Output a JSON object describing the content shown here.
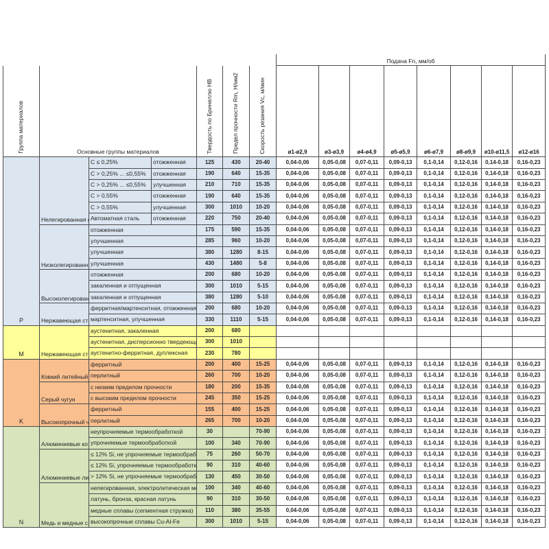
{
  "header": {
    "col_group": "Группа материалов",
    "col_main": "Основные группы материалов",
    "col_hb": "Твердость по Бринеллю HB",
    "col_rm": "Предел прочности Rm, Н/мм2",
    "col_vc": "Скорость резания Vc, м/мин",
    "feed_title": "Подача Fn, мм/об",
    "feed_cols": [
      "ø1-ø2,9",
      "ø3-ø3,9",
      "ø4-ø4,9",
      "ø5-ø5,9",
      "ø6-ø7,9",
      "ø8-ø9,9",
      "ø10-ø11,5",
      "ø12-ø16"
    ]
  },
  "feed_values": [
    "0,04-0,06",
    "0,05-0,08",
    "0,07-0,11",
    "0,09-0,13",
    "0,1-0,14",
    "0,12-0,16",
    "0,14-0,18",
    "0,16-0,23"
  ],
  "blocks": [
    {
      "letter": "P",
      "color": "#dce6f1",
      "rows": 15
    },
    {
      "letter": "M",
      "color": "#ffff99",
      "rows": 3
    },
    {
      "letter": "K",
      "color": "#fabf8f",
      "rows": 6
    },
    {
      "letter": "N",
      "color": "#d7e4bc",
      "rows": 9
    }
  ],
  "material_groups": [
    {
      "label": "Нелегированная с",
      "rows": 6
    },
    {
      "label": "Низколегированн",
      "rows": 4
    },
    {
      "label": "Высоколегирован",
      "rows": 3
    },
    {
      "label": "Нержавеющая ст",
      "rows": 2
    },
    {
      "label": "Нержавеющая ст",
      "rows": 3
    },
    {
      "label": "Ковкий литейный",
      "rows": 2
    },
    {
      "label": "Серый чугун",
      "rows": 2
    },
    {
      "label": "Высокопрочный ч",
      "rows": 2
    },
    {
      "label": "Алюминиевые ко",
      "rows": 2
    },
    {
      "label": "Алюминиевые ли",
      "rows": 3
    },
    {
      "label": "Медь и медные с",
      "rows": 4
    }
  ],
  "rows": [
    {
      "sub": "C ≤ 0,25%",
      "state": "отожженная",
      "hb": "125",
      "rm": "430",
      "vc": "20-40",
      "feeds": true
    },
    {
      "sub": "C > 0,25% ... ≤0,55%",
      "state": "отожженная",
      "hb": "190",
      "rm": "640",
      "vc": "15-35",
      "feeds": true
    },
    {
      "sub": "C > 0,25% ... ≤0,55%",
      "state": "улучшенная",
      "hb": "210",
      "rm": "710",
      "vc": "15-35",
      "feeds": true
    },
    {
      "sub": "C > 0,55%",
      "state": "отожженная",
      "hb": "190",
      "rm": "640",
      "vc": "15-35",
      "feeds": true
    },
    {
      "sub": "C > 0,55%",
      "state": "улучшенная",
      "hb": "300",
      "rm": "1010",
      "vc": "10-20",
      "feeds": true
    },
    {
      "sub": "Автоматная сталь",
      "state": "отожженная",
      "hb": "220",
      "rm": "750",
      "vc": "20-40",
      "feeds": true
    },
    {
      "sub": "отожженная",
      "hb": "175",
      "rm": "590",
      "vc": "15-35",
      "feeds": true
    },
    {
      "sub": "улучшенная",
      "hb": "285",
      "rm": "960",
      "vc": "10-20",
      "feeds": true
    },
    {
      "sub": "улучшенная",
      "hb": "380",
      "rm": "1280",
      "vc": "8-15",
      "feeds": true
    },
    {
      "sub": "улучшенная",
      "hb": "430",
      "rm": "1480",
      "vc": "5-8",
      "feeds": true
    },
    {
      "sub": "отожженная",
      "hb": "200",
      "rm": "680",
      "vc": "10-20",
      "feeds": true
    },
    {
      "sub": "закаленная и отпущенная",
      "hb": "300",
      "rm": "1010",
      "vc": "5-15",
      "feeds": true
    },
    {
      "sub": "закаленная и отпущенная",
      "hb": "380",
      "rm": "1280",
      "vc": "5-10",
      "feeds": true
    },
    {
      "sub": "ферритная/мартенситная, отожженная",
      "hb": "200",
      "rm": "680",
      "vc": "10-20",
      "feeds": true
    },
    {
      "sub": "мартенситная, улучшенная",
      "hb": "330",
      "rm": "1110",
      "vc": "5-15",
      "feeds": true
    },
    {
      "sub": "аустенитная, закаленная",
      "hb": "200",
      "rm": "680",
      "vc": "",
      "feeds": false
    },
    {
      "sub": "аустенитная, дисперсионно твердеюща",
      "hb": "300",
      "rm": "1010",
      "vc": "",
      "feeds": false
    },
    {
      "sub": "аустенитно-ферритная, дуплексная",
      "hb": "230",
      "rm": "780",
      "vc": "",
      "feeds": false
    },
    {
      "sub": "ферритный",
      "hb": "200",
      "rm": "400",
      "vc": "15-25",
      "feeds": true
    },
    {
      "sub": "перлитный",
      "hb": "260",
      "rm": "700",
      "vc": "10-20",
      "feeds": true
    },
    {
      "sub": "с низким пределом прочности",
      "hb": "180",
      "rm": "200",
      "vc": "15-35",
      "feeds": true
    },
    {
      "sub": "с высоким пределом прочности",
      "hb": "245",
      "rm": "350",
      "vc": "15-25",
      "feeds": true
    },
    {
      "sub": "ферритный",
      "hb": "155",
      "rm": "400",
      "vc": "15-25",
      "feeds": true
    },
    {
      "sub": "перлитный",
      "hb": "265",
      "rm": "700",
      "vc": "10-20",
      "feeds": true
    },
    {
      "sub": "неупрочняемые термообработкой",
      "hb": "30",
      "rm": "",
      "vc": "70-90",
      "feeds": true
    },
    {
      "sub": "упрочняемые термообработкой",
      "hb": "100",
      "rm": "340",
      "vc": "70-90",
      "feeds": true
    },
    {
      "sub": "≤ 12% Si, не упрочняемые термообрабо",
      "hb": "75",
      "rm": "260",
      "vc": "50-70",
      "feeds": true
    },
    {
      "sub": "≤ 12% Si, упрочняемые термообработко",
      "hb": "90",
      "rm": "310",
      "vc": "40-60",
      "feeds": true
    },
    {
      "sub": "> 12% Si, не упрочняемые термообрабо",
      "hb": "130",
      "rm": "450",
      "vc": "30-50",
      "feeds": true
    },
    {
      "sub": "нелегированная, электролитическая ме",
      "hb": "100",
      "rm": "340",
      "vc": "40-60",
      "feeds": true
    },
    {
      "sub": "латунь, бронза, красная латунь",
      "hb": "90",
      "rm": "310",
      "vc": "30-50",
      "feeds": true
    },
    {
      "sub": "медные сплавы (сегментная стружка)",
      "hb": "110",
      "rm": "380",
      "vc": "35-55",
      "feeds": true
    },
    {
      "sub": "высокопрочные сплавы Cu-Al-Fe",
      "hb": "300",
      "rm": "1010",
      "vc": "5-15",
      "feeds": true
    }
  ]
}
